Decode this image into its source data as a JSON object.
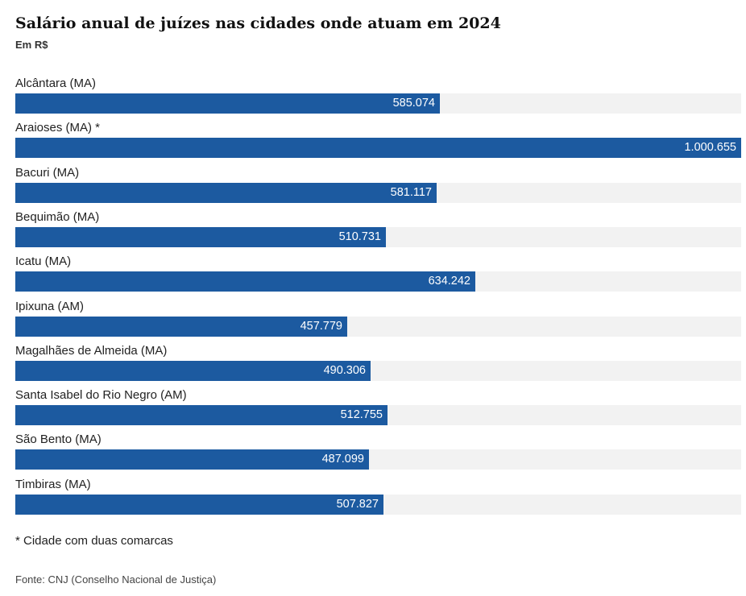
{
  "chart_data": {
    "type": "bar",
    "orientation": "horizontal",
    "title": "Salário anual de juízes nas cidades onde atuam em 2024",
    "subtitle": "Em R$",
    "categories": [
      "Alcântara (MA)",
      "Araioses (MA) *",
      "Bacuri (MA)",
      "Bequimão (MA)",
      "Icatu (MA)",
      "Ipixuna (AM)",
      "Magalhães de Almeida (MA)",
      "Santa Isabel do Rio Negro (AM)",
      "São Bento (MA)",
      "Timbiras (MA)"
    ],
    "values": [
      585074,
      1000655,
      581117,
      510731,
      634242,
      457779,
      490306,
      512755,
      487099,
      507827
    ],
    "value_labels": [
      "585.074",
      "1.000.655",
      "581.117",
      "510.731",
      "634.242",
      "457.779",
      "490.306",
      "512.755",
      "487.099",
      "507.827"
    ],
    "xlim": [
      0,
      1000655
    ],
    "bar_color": "#1c5aa0",
    "track_color": "#f2f2f2"
  },
  "footnote": "* Cidade com duas comarcas",
  "source": "Fonte: CNJ (Conselho Nacional de Justiça)"
}
